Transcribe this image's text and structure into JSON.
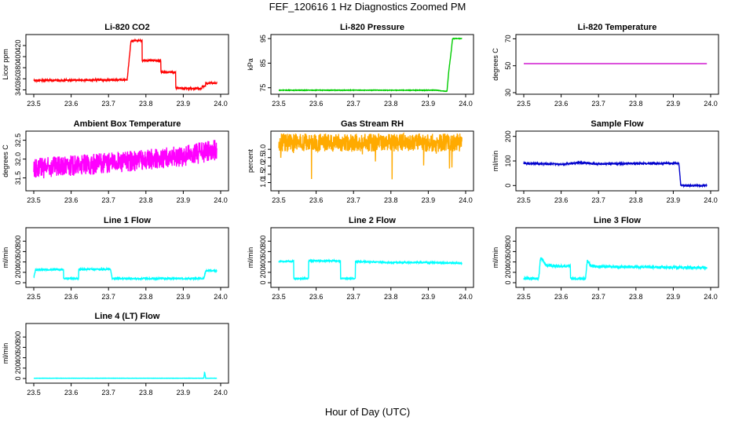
{
  "title": "FEF_120616  1 Hz Diagnostics Zoomed PM",
  "xlabel": "Hour of Day (UTC)",
  "chart_data": [
    {
      "type": "line",
      "title": "Li-820 CO2",
      "ylabel": "Licor ppm",
      "xlim": [
        23.5,
        24.0
      ],
      "ylim": [
        335,
        437
      ],
      "xticks": [
        "23.5",
        "23.6",
        "23.7",
        "23.8",
        "23.9",
        "24.0"
      ],
      "yticks": [
        340,
        360,
        380,
        400,
        420
      ],
      "color": "#ff0000",
      "series": [
        {
          "x": [
            23.5,
            23.7,
            23.75,
            23.76,
            23.76,
            23.78,
            23.79,
            23.79,
            23.83,
            23.84,
            23.84,
            23.87,
            23.88,
            23.88,
            23.95,
            23.95,
            23.96,
            23.96,
            23.99
          ],
          "y": [
            357,
            358,
            358,
            428,
            428,
            429,
            429,
            393,
            393,
            392,
            372,
            372,
            371,
            343,
            342,
            346,
            347,
            352,
            352
          ]
        }
      ]
    },
    {
      "type": "line",
      "title": "Li-820 Pressure",
      "ylabel": "kPa",
      "xlim": [
        23.5,
        24.0
      ],
      "ylim": [
        73,
        96
      ],
      "xticks": [
        "23.5",
        "23.6",
        "23.7",
        "23.8",
        "23.9",
        "24.0"
      ],
      "yticks": [
        75,
        85,
        95
      ],
      "color": "#00cc00",
      "series": [
        {
          "x": [
            23.5,
            23.9,
            23.92,
            23.95,
            23.955,
            23.96,
            23.965,
            23.97,
            23.99
          ],
          "y": [
            74,
            74,
            74,
            73.5,
            82,
            88,
            95,
            95,
            95
          ]
        }
      ]
    },
    {
      "type": "line",
      "title": "Li-820 Temperature",
      "ylabel": "degrees C",
      "xlim": [
        23.5,
        24.0
      ],
      "ylim": [
        30,
        72
      ],
      "xticks": [
        "23.5",
        "23.6",
        "23.7",
        "23.8",
        "23.9",
        "24.0"
      ],
      "yticks": [
        30,
        50,
        70
      ],
      "color": "#cc00cc",
      "series": [
        {
          "x": [
            23.5,
            23.99
          ],
          "y": [
            51.5,
            51.5
          ]
        }
      ]
    },
    {
      "type": "line",
      "title": "Ambient Box Temperature",
      "ylabel": "degrees C",
      "xlim": [
        23.5,
        24.0
      ],
      "ylim": [
        31.2,
        32.7
      ],
      "xticks": [
        "23.5",
        "23.6",
        "23.7",
        "23.8",
        "23.9",
        "24.0"
      ],
      "yticks": [
        31.5,
        32.0,
        32.5
      ],
      "color": "#ff00ff",
      "series": [
        {
          "x": [
            23.5,
            23.6,
            23.7,
            23.8,
            23.9,
            23.99
          ],
          "y": [
            31.75,
            31.82,
            31.9,
            31.98,
            32.08,
            32.25
          ]
        }
      ]
    },
    {
      "type": "line",
      "title": "Gas Stream RH",
      "ylabel": "percent",
      "xlim": [
        23.5,
        24.0
      ],
      "ylim": [
        0.6,
        4.0
      ],
      "xticks": [
        "23.5",
        "23.6",
        "23.7",
        "23.8",
        "23.9",
        "24.0"
      ],
      "yticks": [
        1.0,
        1.5,
        2.0,
        2.5,
        3.0
      ],
      "color": "#ffaa00",
      "series": [
        {
          "x": [
            23.5,
            23.6,
            23.7,
            23.8,
            23.9,
            23.99
          ],
          "y": [
            3.4,
            3.4,
            3.4,
            3.4,
            3.4,
            3.4
          ]
        }
      ]
    },
    {
      "type": "line",
      "title": "Sample Flow",
      "ylabel": "ml/min",
      "xlim": [
        23.5,
        24.0
      ],
      "ylim": [
        -15,
        215
      ],
      "xticks": [
        "23.5",
        "23.6",
        "23.7",
        "23.8",
        "23.9",
        "24.0"
      ],
      "yticks": [
        0,
        100,
        200
      ],
      "color": "#0000cc",
      "series": [
        {
          "x": [
            23.5,
            23.6,
            23.65,
            23.7,
            23.8,
            23.9,
            23.915,
            23.92,
            23.93,
            23.99
          ],
          "y": [
            90,
            87,
            93,
            88,
            90,
            90,
            90,
            2,
            0,
            0
          ]
        }
      ]
    },
    {
      "type": "line",
      "title": "Line 1 Flow",
      "ylabel": "ml/min",
      "xlim": [
        23.5,
        24.0
      ],
      "ylim": [
        -60,
        1030
      ],
      "xticks": [
        "23.5",
        "23.6",
        "23.7",
        "23.8",
        "23.9",
        "24.0"
      ],
      "yticks": [
        0,
        200,
        400,
        600,
        800
      ],
      "color": "#00ffff",
      "series": [
        {
          "x": [
            23.5,
            23.505,
            23.58,
            23.58,
            23.62,
            23.62,
            23.705,
            23.71,
            23.955,
            23.96,
            23.99
          ],
          "y": [
            100,
            250,
            250,
            80,
            80,
            260,
            260,
            80,
            80,
            230,
            230
          ]
        }
      ]
    },
    {
      "type": "line",
      "title": "Line 2 Flow",
      "ylabel": "ml/min",
      "xlim": [
        23.5,
        24.0
      ],
      "ylim": [
        -60,
        1030
      ],
      "xticks": [
        "23.5",
        "23.6",
        "23.7",
        "23.8",
        "23.9",
        "24.0"
      ],
      "yticks": [
        0,
        200,
        400,
        600,
        800
      ],
      "color": "#00ffff",
      "series": [
        {
          "x": [
            23.5,
            23.54,
            23.54,
            23.58,
            23.58,
            23.665,
            23.665,
            23.705,
            23.705,
            23.8,
            23.9,
            23.99
          ],
          "y": [
            410,
            410,
            80,
            80,
            420,
            420,
            80,
            80,
            410,
            390,
            390,
            375
          ]
        }
      ]
    },
    {
      "type": "line",
      "title": "Line 3 Flow",
      "ylabel": "ml/min",
      "xlim": [
        23.5,
        24.0
      ],
      "ylim": [
        -60,
        1030
      ],
      "xticks": [
        "23.5",
        "23.6",
        "23.7",
        "23.8",
        "23.9",
        "24.0"
      ],
      "yticks": [
        0,
        200,
        400,
        600,
        800
      ],
      "color": "#00ffff",
      "series": [
        {
          "x": [
            23.5,
            23.54,
            23.545,
            23.56,
            23.6,
            23.625,
            23.625,
            23.665,
            23.67,
            23.68,
            23.7,
            23.99
          ],
          "y": [
            80,
            80,
            490,
            330,
            320,
            320,
            80,
            80,
            420,
            320,
            310,
            290
          ]
        }
      ]
    },
    {
      "type": "line",
      "title": "Line 4 (LT) Flow",
      "ylabel": "ml/min",
      "xlim": [
        23.5,
        24.0
      ],
      "ylim": [
        -60,
        1030
      ],
      "xticks": [
        "23.5",
        "23.6",
        "23.7",
        "23.8",
        "23.9",
        "24.0"
      ],
      "yticks": [
        0,
        200,
        400,
        600,
        800
      ],
      "color": "#00ffff",
      "series": [
        {
          "x": [
            23.5,
            23.955,
            23.957,
            23.96,
            23.99
          ],
          "y": [
            5,
            5,
            130,
            5,
            5
          ]
        }
      ]
    }
  ]
}
